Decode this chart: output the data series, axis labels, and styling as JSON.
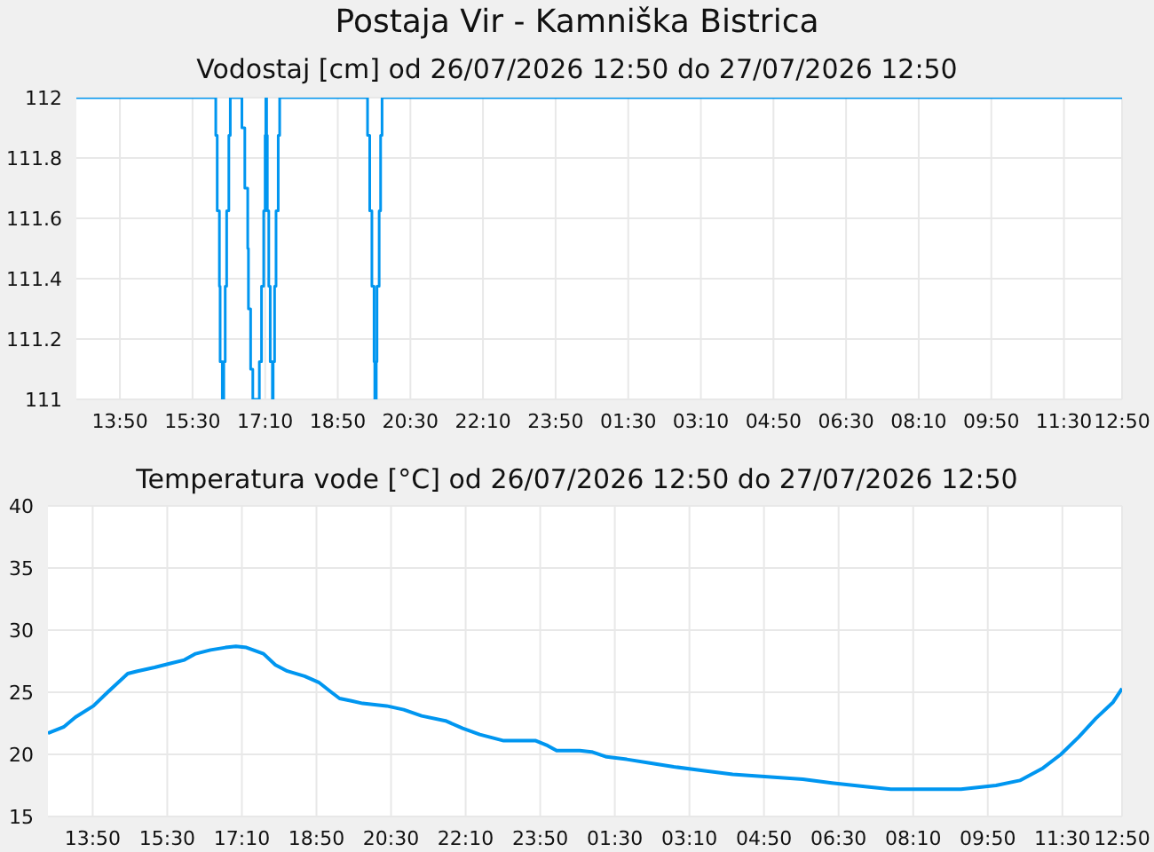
{
  "chart_data": [
    {
      "type": "step",
      "title": "Postaja Vir - Kamniška Bistrica",
      "subtitle": "Vodostaj [cm] od 26/07/2026 12:50 do 27/07/2026 12:50",
      "x": [
        "2026-07-26T12:50",
        "2026-07-26T16:02",
        "2026-07-26T16:04",
        "2026-07-26T16:07",
        "2026-07-26T16:08",
        "2026-07-26T16:11",
        "2026-07-26T16:13",
        "2026-07-26T16:15",
        "2026-07-26T16:17",
        "2026-07-26T16:20",
        "2026-07-26T16:22",
        "2026-07-26T16:38",
        "2026-07-26T16:42",
        "2026-07-26T16:46",
        "2026-07-26T16:47",
        "2026-07-26T16:50",
        "2026-07-26T16:53",
        "2026-07-26T17:02",
        "2026-07-26T17:05",
        "2026-07-26T17:08",
        "2026-07-26T17:10",
        "2026-07-26T17:11",
        "2026-07-26T17:12",
        "2026-07-26T17:13",
        "2026-07-26T17:15",
        "2026-07-26T17:17",
        "2026-07-26T17:20",
        "2026-07-26T17:21",
        "2026-07-26T17:23",
        "2026-07-26T17:25",
        "2026-07-26T17:28",
        "2026-07-26T17:30",
        "2026-07-26T19:31",
        "2026-07-26T19:34",
        "2026-07-26T19:37",
        "2026-07-26T19:40",
        "2026-07-26T19:41",
        "2026-07-26T19:43",
        "2026-07-26T19:44",
        "2026-07-26T19:47",
        "2026-07-26T19:49",
        "2026-07-26T19:51",
        "2026-07-27T12:50"
      ],
      "series": [
        {
          "color": "#0096f0",
          "values": [
            112,
            111.875,
            111.625,
            111.375,
            111.125,
            111,
            111.125,
            111.375,
            111.625,
            111.875,
            112,
            111.9,
            111.7,
            111.5,
            111.3,
            111.1,
            111,
            111.125,
            111.375,
            111.625,
            111.875,
            112,
            111.875,
            111.625,
            111.375,
            111.125,
            111,
            111.125,
            111.375,
            111.625,
            111.875,
            112,
            111.875,
            111.625,
            111.375,
            111.125,
            111,
            111.125,
            111.375,
            111.625,
            111.875,
            112,
            112
          ]
        }
      ],
      "xlim": [
        "2026-07-26T12:50",
        "2026-07-27T12:50"
      ],
      "xticks": [
        {
          "value": "2026-07-26T13:50",
          "label": "13:50"
        },
        {
          "value": "2026-07-26T15:30",
          "label": "15:30"
        },
        {
          "value": "2026-07-26T17:10",
          "label": "17:10"
        },
        {
          "value": "2026-07-26T18:50",
          "label": "18:50"
        },
        {
          "value": "2026-07-26T20:30",
          "label": "20:30"
        },
        {
          "value": "2026-07-26T22:10",
          "label": "22:10"
        },
        {
          "value": "2026-07-26T23:50",
          "label": "23:50"
        },
        {
          "value": "2026-07-27T01:30",
          "label": "01:30"
        },
        {
          "value": "2026-07-27T03:10",
          "label": "03:10"
        },
        {
          "value": "2026-07-27T04:50",
          "label": "04:50"
        },
        {
          "value": "2026-07-27T06:30",
          "label": "06:30"
        },
        {
          "value": "2026-07-27T08:10",
          "label": "08:10"
        },
        {
          "value": "2026-07-27T09:50",
          "label": "09:50"
        },
        {
          "value": "2026-07-27T11:30",
          "label": "11:30"
        },
        {
          "value": "2026-07-27T12:50",
          "label": "12:50"
        }
      ],
      "ylim": [
        111,
        112
      ],
      "yticks": [
        111,
        111.2,
        111.4,
        111.6,
        111.8,
        112
      ],
      "grid": true
    },
    {
      "type": "line",
      "title": "Temperatura vode [°C] od 26/07/2026 12:50 do 27/07/2026 12:50",
      "x": [
        "2026-07-26T12:50",
        "2026-07-26T13:11",
        "2026-07-26T13:27",
        "2026-07-26T13:51",
        "2026-07-26T14:10",
        "2026-07-26T14:37",
        "2026-07-26T14:50",
        "2026-07-26T15:13",
        "2026-07-26T15:33",
        "2026-07-26T15:53",
        "2026-07-26T16:08",
        "2026-07-26T16:28",
        "2026-07-26T16:48",
        "2026-07-26T17:02",
        "2026-07-26T17:16",
        "2026-07-26T17:39",
        "2026-07-26T17:55",
        "2026-07-26T18:11",
        "2026-07-26T18:34",
        "2026-07-26T18:53",
        "2026-07-26T19:10",
        "2026-07-26T19:21",
        "2026-07-26T19:37",
        "2026-07-26T19:52",
        "2026-07-26T20:24",
        "2026-07-26T20:47",
        "2026-07-26T21:11",
        "2026-07-26T21:43",
        "2026-07-26T22:06",
        "2026-07-26T22:29",
        "2026-07-26T23:01",
        "2026-07-26T23:44",
        "2026-07-27T00:00",
        "2026-07-27T00:12",
        "2026-07-27T00:43",
        "2026-07-27T00:59",
        "2026-07-27T01:19",
        "2026-07-27T01:46",
        "2026-07-27T02:17",
        "2026-07-27T02:49",
        "2026-07-27T03:28",
        "2026-07-27T04:08",
        "2026-07-27T04:55",
        "2026-07-27T05:42",
        "2026-07-27T06:21",
        "2026-07-27T07:08",
        "2026-07-27T07:40",
        "2026-07-27T09:14",
        "2026-07-27T10:01",
        "2026-07-27T10:33",
        "2026-07-27T11:04",
        "2026-07-27T11:28",
        "2026-07-27T11:52",
        "2026-07-27T12:15",
        "2026-07-27T12:38",
        "2026-07-27T12:50"
      ],
      "series": [
        {
          "color": "#0096f0",
          "values": [
            21.7,
            22.2,
            23,
            23.9,
            25,
            26.5,
            26.7,
            27,
            27.3,
            27.6,
            28.1,
            28.4,
            28.6,
            28.7,
            28.6,
            28.1,
            27.2,
            26.7,
            26.3,
            25.8,
            25,
            24.5,
            24.3,
            24.1,
            23.9,
            23.6,
            23.1,
            22.7,
            22.1,
            21.6,
            21.1,
            21.1,
            20.7,
            20.3,
            20.3,
            20.2,
            19.8,
            19.6,
            19.3,
            19,
            18.7,
            18.4,
            18.2,
            18,
            17.7,
            17.4,
            17.2,
            17.2,
            17.5,
            17.9,
            18.9,
            20,
            21.4,
            22.9,
            24.2,
            25.3
          ]
        }
      ],
      "xlim": [
        "2026-07-26T12:50",
        "2026-07-27T12:50"
      ],
      "xticks": [
        {
          "value": "2026-07-26T13:50",
          "label": "13:50"
        },
        {
          "value": "2026-07-26T15:30",
          "label": "15:30"
        },
        {
          "value": "2026-07-26T17:10",
          "label": "17:10"
        },
        {
          "value": "2026-07-26T18:50",
          "label": "18:50"
        },
        {
          "value": "2026-07-26T20:30",
          "label": "20:30"
        },
        {
          "value": "2026-07-26T22:10",
          "label": "22:10"
        },
        {
          "value": "2026-07-26T23:50",
          "label": "23:50"
        },
        {
          "value": "2026-07-27T01:30",
          "label": "01:30"
        },
        {
          "value": "2026-07-27T03:10",
          "label": "03:10"
        },
        {
          "value": "2026-07-27T04:50",
          "label": "04:50"
        },
        {
          "value": "2026-07-27T06:30",
          "label": "06:30"
        },
        {
          "value": "2026-07-27T08:10",
          "label": "08:10"
        },
        {
          "value": "2026-07-27T09:50",
          "label": "09:50"
        },
        {
          "value": "2026-07-27T11:30",
          "label": "11:30"
        },
        {
          "value": "2026-07-27T12:50",
          "label": "12:50"
        }
      ],
      "ylim": [
        15,
        40
      ],
      "yticks": [
        15,
        20,
        25,
        30,
        35,
        40
      ],
      "grid": true
    }
  ]
}
